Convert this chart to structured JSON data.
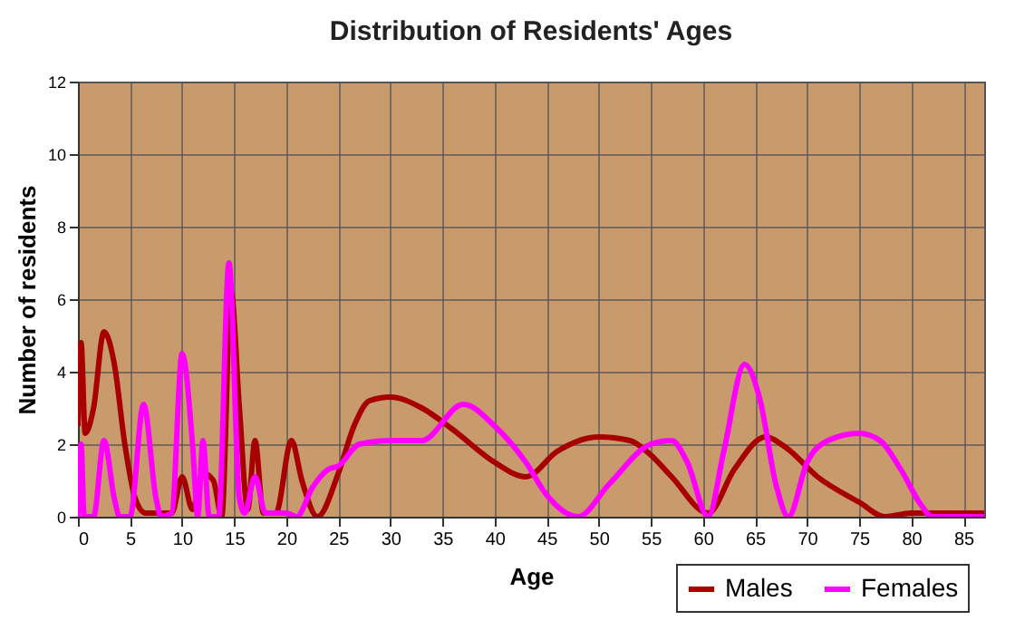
{
  "chart_data": {
    "type": "line",
    "title": "Distribution of Residents' Ages",
    "xlabel": "Age",
    "ylabel": "Number of residents",
    "xlim": [
      0,
      87
    ],
    "xticks": [
      0,
      5,
      10,
      15,
      20,
      25,
      30,
      35,
      40,
      45,
      50,
      55,
      60,
      65,
      70,
      75,
      80,
      85
    ],
    "ylim": [
      0,
      12
    ],
    "yticks": [
      0,
      2,
      4,
      6,
      8,
      10,
      12
    ],
    "grid": true,
    "legend": "bottom right",
    "marker": "none",
    "line_style": "solid",
    "series": [
      {
        "name": "Males",
        "color": "#a80000",
        "x": [
          0,
          0.3,
          0.7,
          1.5,
          2.5,
          3.5,
          4.5,
          5.5,
          6.5,
          8,
          9,
          10,
          11,
          12,
          13,
          13.8,
          14.7,
          15.5,
          16.3,
          17,
          17.8,
          19,
          20.5,
          21.5,
          23,
          25,
          26.5,
          28,
          30,
          33,
          36,
          40,
          43,
          46,
          50,
          53,
          55,
          57,
          60.5,
          63,
          66,
          68,
          71,
          75,
          77.5,
          80,
          85,
          87
        ],
        "values": [
          2.5,
          4.8,
          2.3,
          3,
          5.1,
          4.2,
          2,
          0.5,
          0.1,
          0.1,
          0.1,
          1.1,
          0.2,
          1.2,
          1,
          0,
          6.2,
          3,
          0.2,
          2.1,
          0.1,
          0.1,
          2.1,
          1,
          0,
          1.2,
          2.5,
          3.2,
          3.3,
          3,
          2.4,
          1.5,
          1.1,
          1.8,
          2.2,
          2.1,
          1.7,
          1.1,
          0.1,
          1.3,
          2.2,
          1.9,
          1.1,
          0.4,
          0,
          0.1,
          0.1,
          0.1
        ]
      },
      {
        "name": "Females",
        "color": "#ff00ff",
        "x": [
          0,
          0.3,
          0.6,
          1.5,
          2.5,
          3.5,
          4,
          5,
          6.3,
          7.5,
          8,
          9,
          10,
          11,
          11.5,
          12,
          12.6,
          13.5,
          14.5,
          15.5,
          16,
          17,
          18,
          20,
          21,
          22.5,
          24,
          25,
          27,
          30,
          33,
          37,
          40,
          43,
          45,
          48,
          51,
          55,
          57,
          58.5,
          60.5,
          62,
          64,
          65.5,
          67,
          68.2,
          70,
          72,
          75,
          77,
          79,
          81,
          82,
          87
        ],
        "values": [
          0,
          2,
          0,
          0,
          2.1,
          0.5,
          0,
          0,
          3.1,
          0.5,
          0,
          0.1,
          4.5,
          2,
          0,
          2.1,
          0,
          0,
          7,
          0.5,
          0.1,
          1.1,
          0.1,
          0.1,
          0,
          0.8,
          1.3,
          1.4,
          2,
          2.1,
          2.1,
          3.1,
          2.5,
          1.5,
          0.6,
          0,
          0.9,
          2,
          2.1,
          1.5,
          0,
          1.8,
          4.2,
          3.2,
          0.9,
          0,
          1.5,
          2.1,
          2.3,
          2.1,
          1.3,
          0.3,
          0,
          0
        ]
      }
    ]
  }
}
